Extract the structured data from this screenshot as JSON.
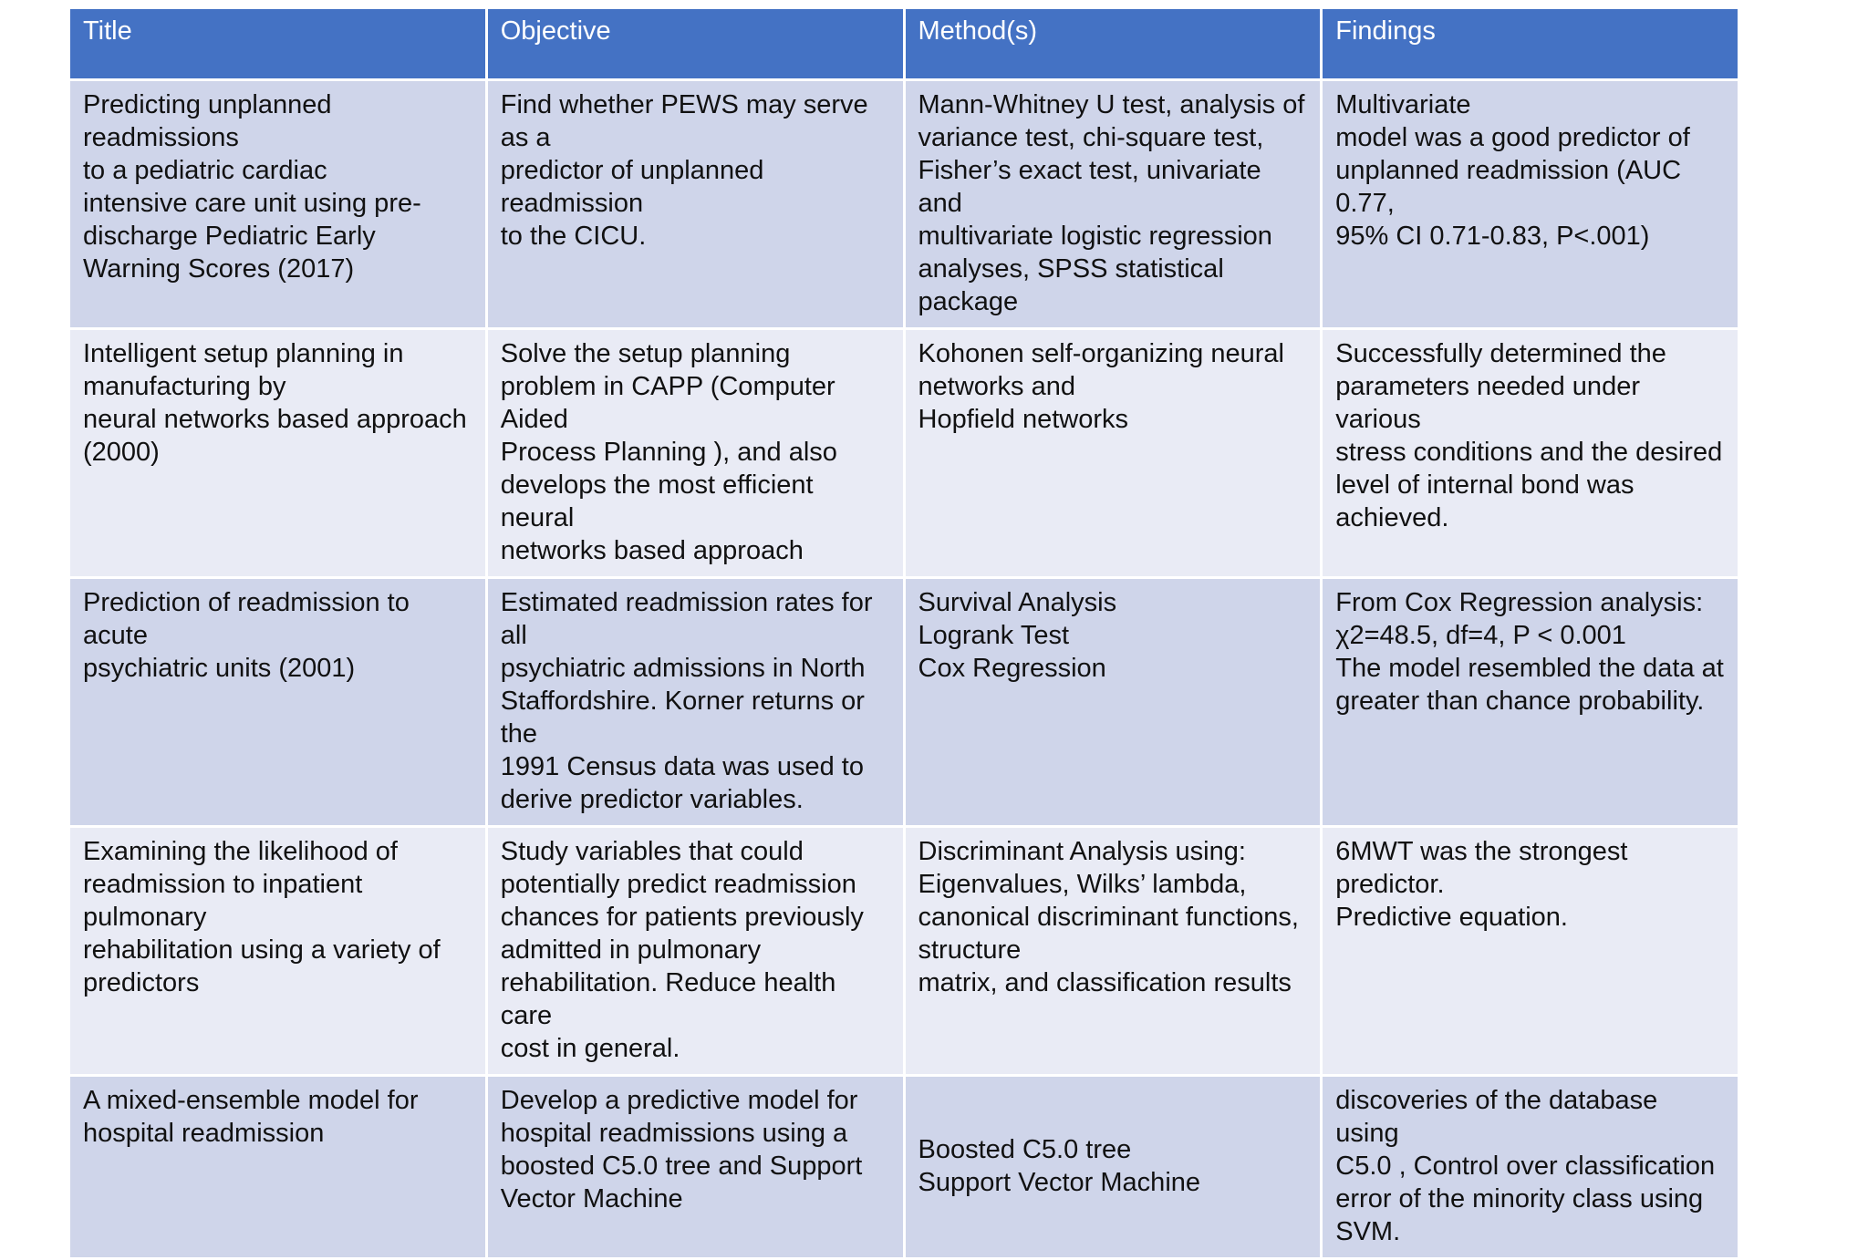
{
  "table": {
    "headers": [
      "Title",
      "Objective",
      "Method(s)",
      "Findings"
    ],
    "rows": [
      {
        "title": "Predicting unplanned readmissions\nto a pediatric cardiac\nintensive care unit using pre-\ndischarge Pediatric Early\nWarning Scores (2017)",
        "objective": "Find whether PEWS may serve as a\npredictor of unplanned readmission\nto the CICU.",
        "methods": "Mann-Whitney U test, analysis of\nvariance test, chi-square test,\nFisher’s exact test, univariate and\nmultivariate logistic regression\nanalyses, SPSS statistical package",
        "findings": "Multivariate\nmodel was a good predictor of\nunplanned readmission (AUC 0.77,\n95% CI 0.71-0.83, P<.001)"
      },
      {
        "title": "Intelligent setup planning in\nmanufacturing by\nneural networks based approach\n(2000)",
        "objective": "Solve the setup planning\nproblem in CAPP (Computer Aided\nProcess Planning ), and also\ndevelops the most efficient neural\nnetworks based approach",
        "methods": "Kohonen self-organizing neural\nnetworks and\nHopfield networks",
        "findings": "Successfully determined the\nparameters needed under various\nstress conditions and the desired\nlevel of internal bond was achieved."
      },
      {
        "title": "Prediction of readmission to acute\npsychiatric units (2001)",
        "objective": "Estimated readmission rates for all\npsychiatric admissions in North\nStaffordshire. Korner returns or the\n1991 Census data was used to\nderive predictor variables.",
        "methods": "Survival Analysis\nLogrank Test\nCox Regression",
        "findings": "From Cox Regression analysis:\nχ2=48.5, df=4, P < 0.001\nThe model resembled the data at\ngreater than chance probability."
      },
      {
        "title": "Examining the likelihood of\nreadmission to inpatient pulmonary\nrehabilitation using a variety of\npredictors",
        "objective": "Study variables that could\npotentially predict readmission\nchances for patients previously\nadmitted in pulmonary\nrehabilitation. Reduce health care\ncost in general.",
        "methods": "Discriminant Analysis using:\nEigenvalues, Wilks’ lambda,\ncanonical discriminant functions,\nstructure\nmatrix, and classification results",
        "findings": "6MWT was the strongest predictor.\nPredictive equation."
      },
      {
        "title": "A mixed-ensemble model for\nhospital readmission",
        "objective": "Develop a predictive model for\nhospital readmissions using a\nboosted C5.0 tree and Support\nVector Machine",
        "methods": "Boosted C5.0 tree\nSupport Vector Machine",
        "findings": "discoveries of the database using\nC5.0 , Control over classification\nerror of the minority class using\nSVM."
      }
    ]
  }
}
